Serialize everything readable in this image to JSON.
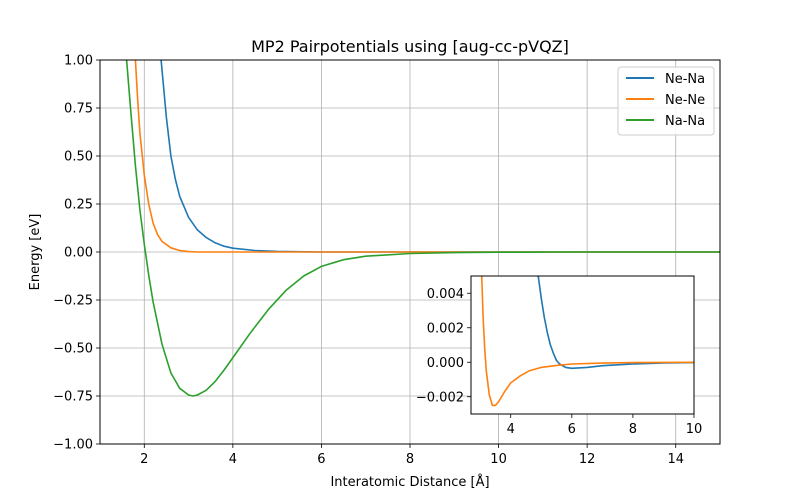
{
  "chart_data": [
    {
      "type": "line",
      "title": "MP2 Pairpotentials using [aug-cc-pVQZ]",
      "xlabel": "Interatomic Distance [Å]",
      "ylabel": "Energy [eV]",
      "xlim": [
        1.0,
        15.0
      ],
      "ylim": [
        -1.0,
        1.0
      ],
      "xticks": [
        2,
        4,
        6,
        8,
        10,
        12,
        14
      ],
      "xticklabels": [
        "2",
        "4",
        "6",
        "8",
        "10",
        "12",
        "14"
      ],
      "yticks": [
        -1.0,
        -0.75,
        -0.5,
        -0.25,
        0.0,
        0.25,
        0.5,
        0.75,
        1.0
      ],
      "yticklabels": [
        "−1.00",
        "−0.75",
        "−0.50",
        "−0.25",
        "0.00",
        "0.25",
        "0.50",
        "0.75",
        "1.00"
      ],
      "grid": true,
      "legend_position": "top-right",
      "series": [
        {
          "name": "Ne-Na",
          "color": "#1f77b4",
          "x": [
            2.38,
            2.5,
            2.6,
            2.7,
            2.8,
            3.0,
            3.2,
            3.4,
            3.6,
            3.8,
            4.0,
            4.5,
            5.0,
            6.0,
            8.0,
            10.0,
            12.0,
            15.0
          ],
          "y": [
            1.0,
            0.7,
            0.5,
            0.38,
            0.29,
            0.18,
            0.115,
            0.075,
            0.048,
            0.03,
            0.02,
            0.008,
            0.003,
            0.0,
            0.0,
            0.0,
            0.0,
            0.0
          ]
        },
        {
          "name": "Ne-Ne",
          "color": "#ff7f0e",
          "x": [
            1.8,
            1.85,
            1.9,
            2.0,
            2.1,
            2.2,
            2.3,
            2.4,
            2.6,
            2.8,
            3.0,
            3.2,
            4.0,
            6.0,
            10.0,
            15.0
          ],
          "y": [
            1.0,
            0.8,
            0.62,
            0.4,
            0.25,
            0.15,
            0.09,
            0.055,
            0.022,
            0.008,
            0.002,
            0.0,
            0.0,
            0.0,
            0.0,
            0.0
          ]
        },
        {
          "name": "Na-Na",
          "color": "#2ca02c",
          "x": [
            1.6,
            1.7,
            1.8,
            1.9,
            2.0,
            2.1,
            2.2,
            2.4,
            2.6,
            2.8,
            3.0,
            3.1,
            3.2,
            3.4,
            3.6,
            3.8,
            4.0,
            4.4,
            4.8,
            5.2,
            5.6,
            6.0,
            6.5,
            7.0,
            8.0,
            9.0,
            10.0,
            12.0,
            15.0
          ],
          "y": [
            1.0,
            0.72,
            0.45,
            0.22,
            0.04,
            -0.12,
            -0.26,
            -0.48,
            -0.63,
            -0.71,
            -0.745,
            -0.75,
            -0.745,
            -0.72,
            -0.675,
            -0.615,
            -0.55,
            -0.42,
            -0.3,
            -0.2,
            -0.125,
            -0.075,
            -0.04,
            -0.022,
            -0.008,
            -0.003,
            -0.001,
            0.0,
            0.0
          ]
        }
      ]
    },
    {
      "type": "line",
      "title": "",
      "xlabel": "",
      "ylabel": "",
      "xlim": [
        2.7,
        10.0
      ],
      "ylim": [
        -0.003,
        0.005
      ],
      "xticks": [
        4,
        6,
        8,
        10
      ],
      "xticklabels": [
        "4",
        "6",
        "8",
        "10"
      ],
      "yticks": [
        -0.002,
        0.0,
        0.002,
        0.004
      ],
      "yticklabels": [
        "−0.002",
        "0.000",
        "0.002",
        "0.004"
      ],
      "grid": false,
      "series": [
        {
          "color": "#1f77b4",
          "x": [
            4.9,
            5.0,
            5.1,
            5.2,
            5.3,
            5.4,
            5.5,
            5.6,
            5.8,
            6.0,
            6.5,
            7.0,
            7.5,
            8.0,
            9.0,
            10.0
          ],
          "y": [
            0.005,
            0.0037,
            0.0026,
            0.0017,
            0.001,
            0.0005,
            0.0001,
            -0.0001,
            -0.0003,
            -0.00035,
            -0.0003,
            -0.0002,
            -0.00015,
            -0.0001,
            -4e-05,
            -2e-05
          ]
        },
        {
          "color": "#ff7f0e",
          "x": [
            3.05,
            3.1,
            3.15,
            3.2,
            3.3,
            3.4,
            3.5,
            3.6,
            3.8,
            4.0,
            4.3,
            4.6,
            5.0,
            5.5,
            6.0,
            7.0,
            8.0,
            9.0,
            10.0
          ],
          "y": [
            0.005,
            0.0025,
            0.0008,
            -0.0005,
            -0.0019,
            -0.0025,
            -0.0025,
            -0.0023,
            -0.0017,
            -0.0012,
            -0.0008,
            -0.0005,
            -0.0003,
            -0.00018,
            -0.0001,
            -5e-05,
            -2e-05,
            -1e-05,
            0.0
          ]
        }
      ]
    }
  ]
}
